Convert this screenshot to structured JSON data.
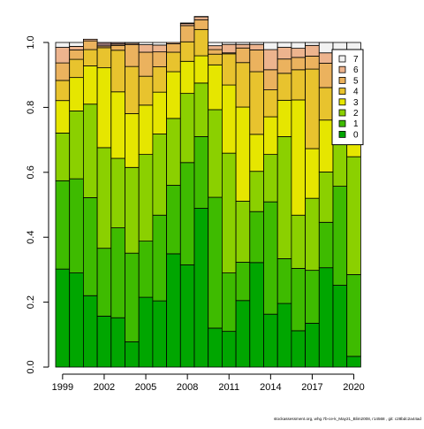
{
  "footer": "stockassessment.org, whg.7b-ce-k_May21_Blim2008, r14568 , git: c28bdc2a44ad",
  "chart_data": {
    "type": "bar",
    "stacked": true,
    "categories": [
      "1999",
      "2000",
      "2001",
      "2002",
      "2003",
      "2004",
      "2005",
      "2006",
      "2007",
      "2008",
      "2009",
      "2010",
      "2011",
      "2012",
      "2013",
      "2014",
      "2015",
      "2016",
      "2017",
      "2018",
      "2019",
      "2020"
    ],
    "x_tick_labels": [
      "1999",
      "2002",
      "2005",
      "2008",
      "2011",
      "2014",
      "2017",
      "2020"
    ],
    "ylim": [
      0,
      1
    ],
    "y_ticks": [
      "0.0",
      "0.2",
      "0.4",
      "0.6",
      "0.8",
      "1.0"
    ],
    "grid": false,
    "legend_position": "top-right",
    "series": [
      {
        "name": "0",
        "color": "#00a600",
        "values": [
          0.302,
          0.29,
          0.22,
          0.157,
          0.152,
          0.078,
          0.215,
          0.204,
          0.349,
          0.315,
          0.489,
          0.12,
          0.11,
          0.205,
          0.322,
          0.163,
          0.196,
          0.112,
          0.135,
          0.306,
          0.252,
          0.033
        ]
      },
      {
        "name": "1",
        "color": "#3ebb00",
        "values": [
          0.272,
          0.29,
          0.302,
          0.209,
          0.277,
          0.273,
          0.173,
          0.264,
          0.211,
          0.315,
          0.221,
          0.403,
          0.18,
          0.118,
          0.157,
          0.346,
          0.138,
          0.192,
          0.163,
          0.14,
          0.305,
          0.252
        ]
      },
      {
        "name": "2",
        "color": "#8bd000",
        "values": [
          0.147,
          0.209,
          0.288,
          0.31,
          0.214,
          0.264,
          0.267,
          0.25,
          0.206,
          0.213,
          0.165,
          0.27,
          0.369,
          0.188,
          0.124,
          0.146,
          0.376,
          0.164,
          0.222,
          0.155,
          0.18,
          0.363
        ]
      },
      {
        "name": "3",
        "color": "#e6e600",
        "values": [
          0.1,
          0.103,
          0.118,
          0.246,
          0.205,
          0.166,
          0.152,
          0.129,
          0.144,
          0.099,
          0.084,
          0.138,
          0.21,
          0.29,
          0.114,
          0.116,
          0.112,
          0.355,
          0.153,
          0.16,
          0.109,
          0.13
        ]
      },
      {
        "name": "4",
        "color": "#e8c32e",
        "values": [
          0.062,
          0.056,
          0.05,
          0.062,
          0.128,
          0.145,
          0.089,
          0.078,
          0.06,
          0.06,
          0.081,
          0.033,
          0.096,
          0.137,
          0.193,
          0.083,
          0.083,
          0.093,
          0.245,
          0.1,
          0.058,
          0.054
        ]
      },
      {
        "name": "5",
        "color": "#ebb25e",
        "values": [
          0.054,
          0.029,
          0.027,
          0.005,
          0.015,
          0.067,
          0.074,
          0.046,
          0.026,
          0.05,
          0.03,
          0.014,
          0.003,
          0.045,
          0.067,
          0.062,
          0.044,
          0.038,
          0.04,
          0.075,
          0.048,
          0.05
        ]
      },
      {
        "name": "6",
        "color": "#edb48e",
        "values": [
          0.048,
          0.011,
          0.005,
          0.0,
          0.004,
          0.004,
          0.023,
          0.021,
          0.004,
          0.006,
          0.009,
          0.012,
          0.026,
          0.011,
          0.017,
          0.062,
          0.036,
          0.028,
          0.033,
          0.032,
          0.026,
          0.047
        ]
      },
      {
        "name": "7",
        "color": "#f2f2f2",
        "values": [
          0.015,
          0.012,
          0.0,
          0.0,
          0.0,
          0.003,
          0.007,
          0.008,
          0.0,
          0.002,
          0.001,
          0.01,
          0.006,
          0.006,
          0.006,
          0.022,
          0.015,
          0.018,
          0.009,
          0.032,
          0.022,
          0.071
        ]
      },
      {
        "name": "",
        "color": "#8c6d6d",
        "values": [
          0.0,
          0.0,
          0.0,
          0.011,
          0.005,
          0.0,
          0.0,
          0.0,
          0.0,
          0.0,
          0.0,
          0.0,
          0.0,
          0.0,
          0.0,
          0.0,
          0.0,
          0.0,
          0.0,
          0.0,
          0.0,
          0.0
        ]
      }
    ],
    "legend": [
      "7",
      "6",
      "5",
      "4",
      "3",
      "2",
      "1",
      "0"
    ]
  }
}
